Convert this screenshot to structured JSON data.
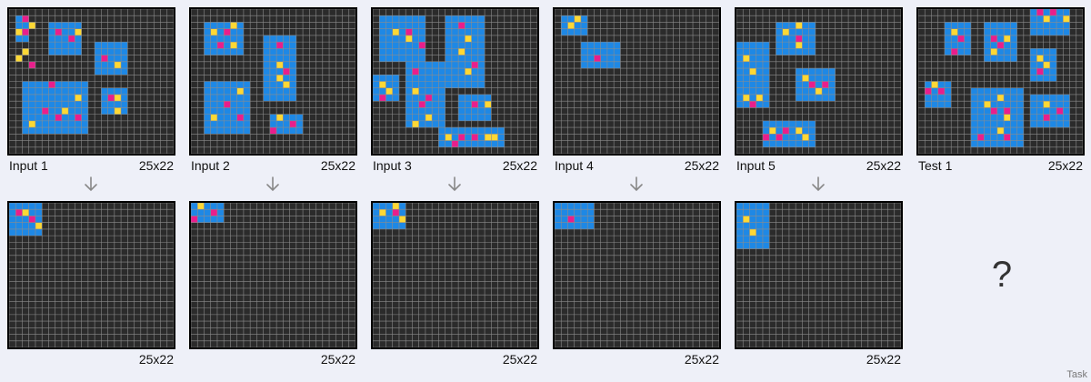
{
  "colors": {
    "bg": "#2b2b2b",
    "gridline": "#8c8c8c",
    "blue": "#1e88e5",
    "yellow": "#fdd835",
    "magenta": "#e91e8c"
  },
  "examples": [
    {
      "input": {
        "label": "Input 1",
        "size_label": "25x22",
        "cols": 25,
        "rows": 22,
        "rects": [
          [
            1,
            1,
            2,
            4
          ],
          [
            6,
            2,
            5,
            5
          ],
          [
            13,
            5,
            5,
            5
          ],
          [
            2,
            11,
            10,
            8
          ],
          [
            14,
            12,
            4,
            4
          ]
        ],
        "cells": [
          [
            2,
            1,
            "m"
          ],
          [
            3,
            2,
            "y"
          ],
          [
            1,
            3,
            "y"
          ],
          [
            2,
            3,
            "m"
          ],
          [
            2,
            6,
            "y"
          ],
          [
            1,
            7,
            "y"
          ],
          [
            3,
            8,
            "m"
          ],
          [
            7,
            3,
            "m"
          ],
          [
            10,
            3,
            "y"
          ],
          [
            9,
            4,
            "m"
          ],
          [
            14,
            7,
            "m"
          ],
          [
            16,
            8,
            "y"
          ],
          [
            6,
            11,
            "m"
          ],
          [
            10,
            13,
            "y"
          ],
          [
            5,
            15,
            "m"
          ],
          [
            8,
            15,
            "y"
          ],
          [
            7,
            16,
            "m"
          ],
          [
            10,
            16,
            "m"
          ],
          [
            3,
            17,
            "y"
          ],
          [
            15,
            13,
            "m"
          ],
          [
            16,
            13,
            "y"
          ],
          [
            16,
            15,
            "y"
          ]
        ]
      },
      "output": {
        "label": "",
        "size_label": "25x22",
        "cols": 25,
        "rows": 22,
        "rects": [
          [
            0,
            0,
            5,
            5
          ]
        ],
        "cells": [
          [
            1,
            1,
            "m"
          ],
          [
            2,
            1,
            "y"
          ],
          [
            3,
            2,
            "m"
          ],
          [
            4,
            3,
            "y"
          ]
        ]
      }
    },
    {
      "input": {
        "label": "Input 2",
        "size_label": "25x22",
        "cols": 25,
        "rows": 22,
        "rects": [
          [
            2,
            2,
            6,
            5
          ],
          [
            11,
            4,
            5,
            10
          ],
          [
            2,
            11,
            7,
            8
          ],
          [
            12,
            16,
            5,
            3
          ]
        ],
        "cells": [
          [
            3,
            3,
            "y"
          ],
          [
            6,
            2,
            "y"
          ],
          [
            5,
            3,
            "m"
          ],
          [
            4,
            5,
            "m"
          ],
          [
            6,
            5,
            "y"
          ],
          [
            13,
            5,
            "m"
          ],
          [
            13,
            8,
            "y"
          ],
          [
            14,
            9,
            "m"
          ],
          [
            13,
            10,
            "y"
          ],
          [
            14,
            11,
            "y"
          ],
          [
            7,
            12,
            "y"
          ],
          [
            5,
            14,
            "m"
          ],
          [
            3,
            16,
            "y"
          ],
          [
            7,
            16,
            "m"
          ],
          [
            13,
            16,
            "y"
          ],
          [
            15,
            17,
            "m"
          ],
          [
            12,
            18,
            "m"
          ]
        ]
      },
      "output": {
        "label": "",
        "size_label": "25x22",
        "cols": 25,
        "rows": 22,
        "rects": [
          [
            0,
            0,
            5,
            3
          ]
        ],
        "cells": [
          [
            1,
            0,
            "y"
          ],
          [
            3,
            1,
            "m"
          ],
          [
            0,
            2,
            "m"
          ]
        ]
      }
    },
    {
      "input": {
        "label": "Input 3",
        "size_label": "25x22",
        "cols": 25,
        "rows": 22,
        "rects": [
          [
            1,
            1,
            7,
            7
          ],
          [
            11,
            1,
            6,
            11
          ],
          [
            5,
            8,
            6,
            10
          ],
          [
            0,
            10,
            4,
            4
          ],
          [
            13,
            13,
            5,
            4
          ],
          [
            10,
            18,
            10,
            3
          ]
        ],
        "cells": [
          [
            3,
            3,
            "y"
          ],
          [
            5,
            3,
            "m"
          ],
          [
            5,
            4,
            "y"
          ],
          [
            7,
            5,
            "m"
          ],
          [
            13,
            2,
            "m"
          ],
          [
            14,
            4,
            "y"
          ],
          [
            13,
            6,
            "y"
          ],
          [
            15,
            8,
            "m"
          ],
          [
            14,
            9,
            "y"
          ],
          [
            6,
            9,
            "m"
          ],
          [
            6,
            12,
            "y"
          ],
          [
            8,
            13,
            "m"
          ],
          [
            7,
            14,
            "m"
          ],
          [
            8,
            16,
            "y"
          ],
          [
            6,
            17,
            "y"
          ],
          [
            1,
            11,
            "y"
          ],
          [
            2,
            12,
            "y"
          ],
          [
            1,
            13,
            "m"
          ],
          [
            15,
            14,
            "m"
          ],
          [
            17,
            14,
            "y"
          ],
          [
            11,
            19,
            "y"
          ],
          [
            13,
            19,
            "m"
          ],
          [
            15,
            19,
            "m"
          ],
          [
            17,
            19,
            "y"
          ],
          [
            18,
            19,
            "y"
          ],
          [
            12,
            20,
            "m"
          ]
        ]
      },
      "output": {
        "label": "",
        "size_label": "25x22",
        "cols": 25,
        "rows": 22,
        "rects": [
          [
            0,
            0,
            5,
            4
          ]
        ],
        "cells": [
          [
            3,
            0,
            "y"
          ],
          [
            1,
            1,
            "y"
          ],
          [
            3,
            1,
            "m"
          ],
          [
            4,
            2,
            "y"
          ]
        ]
      }
    },
    {
      "input": {
        "label": "Input 4",
        "size_label": "25x22",
        "cols": 25,
        "rows": 22,
        "rects": [
          [
            1,
            1,
            4,
            3
          ],
          [
            4,
            5,
            6,
            4
          ]
        ],
        "cells": [
          [
            3,
            1,
            "y"
          ],
          [
            2,
            2,
            "y"
          ],
          [
            6,
            7,
            "m"
          ]
        ]
      },
      "output": {
        "label": "",
        "size_label": "25x22",
        "cols": 25,
        "rows": 22,
        "rects": [
          [
            0,
            0,
            6,
            4
          ]
        ],
        "cells": [
          [
            2,
            2,
            "m"
          ]
        ]
      }
    },
    {
      "input": {
        "label": "Input 5",
        "size_label": "25x22",
        "cols": 25,
        "rows": 22,
        "rects": [
          [
            6,
            2,
            6,
            5
          ],
          [
            0,
            5,
            5,
            7
          ],
          [
            9,
            9,
            6,
            5
          ],
          [
            0,
            12,
            5,
            3
          ],
          [
            4,
            17,
            8,
            4
          ]
        ],
        "cells": [
          [
            7,
            3,
            "y"
          ],
          [
            9,
            2,
            "y"
          ],
          [
            9,
            4,
            "m"
          ],
          [
            9,
            5,
            "y"
          ],
          [
            1,
            7,
            "y"
          ],
          [
            2,
            9,
            "y"
          ],
          [
            10,
            10,
            "y"
          ],
          [
            11,
            11,
            "m"
          ],
          [
            13,
            11,
            "m"
          ],
          [
            12,
            12,
            "y"
          ],
          [
            1,
            13,
            "y"
          ],
          [
            3,
            13,
            "y"
          ],
          [
            2,
            14,
            "m"
          ],
          [
            5,
            18,
            "y"
          ],
          [
            7,
            18,
            "m"
          ],
          [
            9,
            18,
            "y"
          ],
          [
            6,
            19,
            "m"
          ],
          [
            10,
            19,
            "y"
          ],
          [
            4,
            19,
            "m"
          ]
        ]
      },
      "output": {
        "label": "",
        "size_label": "25x22",
        "cols": 25,
        "rows": 22,
        "rects": [
          [
            0,
            0,
            5,
            7
          ]
        ],
        "cells": [
          [
            1,
            2,
            "y"
          ],
          [
            2,
            4,
            "y"
          ]
        ]
      }
    }
  ],
  "test": {
    "label": "Test 1",
    "size_label": "25x22",
    "cols": 25,
    "rows": 22,
    "rects": [
      [
        4,
        2,
        4,
        5
      ],
      [
        10,
        2,
        5,
        6
      ],
      [
        17,
        0,
        6,
        4
      ],
      [
        17,
        6,
        4,
        5
      ],
      [
        1,
        11,
        4,
        4
      ],
      [
        8,
        12,
        8,
        9
      ],
      [
        17,
        13,
        6,
        5
      ]
    ],
    "cells": [
      [
        5,
        3,
        "y"
      ],
      [
        6,
        4,
        "m"
      ],
      [
        5,
        6,
        "m"
      ],
      [
        11,
        4,
        "m"
      ],
      [
        13,
        4,
        "y"
      ],
      [
        12,
        5,
        "m"
      ],
      [
        11,
        6,
        "y"
      ],
      [
        18,
        0,
        "m"
      ],
      [
        20,
        0,
        "m"
      ],
      [
        19,
        1,
        "y"
      ],
      [
        22,
        1,
        "y"
      ],
      [
        18,
        7,
        "y"
      ],
      [
        19,
        8,
        "y"
      ],
      [
        18,
        9,
        "m"
      ],
      [
        2,
        11,
        "y"
      ],
      [
        3,
        12,
        "m"
      ],
      [
        1,
        12,
        "m"
      ],
      [
        12,
        13,
        "y"
      ],
      [
        10,
        14,
        "y"
      ],
      [
        13,
        15,
        "m"
      ],
      [
        11,
        15,
        "m"
      ],
      [
        13,
        16,
        "y"
      ],
      [
        12,
        18,
        "y"
      ],
      [
        9,
        19,
        "m"
      ],
      [
        13,
        19,
        "m"
      ],
      [
        19,
        14,
        "y"
      ],
      [
        21,
        15,
        "m"
      ],
      [
        19,
        16,
        "m"
      ]
    ]
  },
  "question_mark": "?",
  "footer_label": "Task"
}
